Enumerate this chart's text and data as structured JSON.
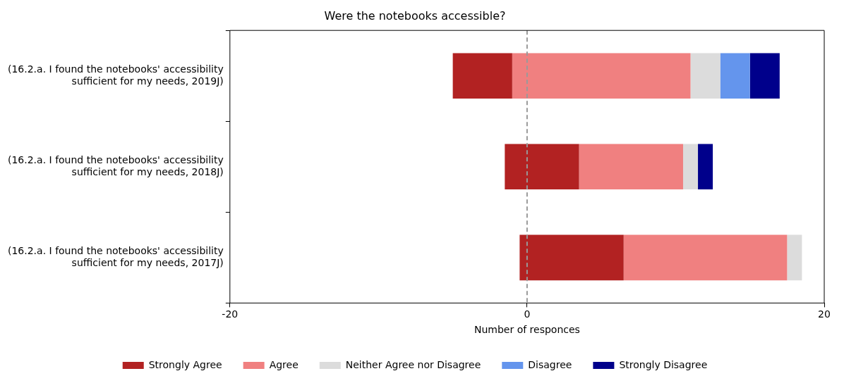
{
  "chart_data": {
    "type": "bar",
    "orientation": "horizontal",
    "title": "Were the notebooks accessible?",
    "xlabel": "Number of responces",
    "categories": [
      "(16.2.a. I found the notebooks' accessibility sufficient for my needs, 2019J)",
      "(16.2.a. I found the notebooks' accessibility sufficient for my needs, 2018J)",
      "(16.2.a. I found the notebooks' accessibility sufficient for my needs, 2017J)"
    ],
    "series": [
      {
        "name": "Strongly Agree",
        "color": "#b22222",
        "base": [
          -5,
          -1.5,
          -0.5
        ],
        "values": [
          4,
          5,
          7
        ]
      },
      {
        "name": "Agree",
        "color": "#f08080",
        "base": [
          -1,
          3.5,
          6.5
        ],
        "values": [
          12,
          7,
          11
        ]
      },
      {
        "name": "Neither Agree nor Disagree",
        "color": "#dcdcdc",
        "base": [
          11,
          10.5,
          17.5
        ],
        "values": [
          2,
          1,
          1
        ]
      },
      {
        "name": "Disagree",
        "color": "#6495ed",
        "base": [
          13,
          null,
          null
        ],
        "values": [
          2,
          null,
          null
        ]
      },
      {
        "name": "Strongly Disagree",
        "color": "#00008b",
        "base": [
          15,
          11.5,
          null
        ],
        "values": [
          2,
          1,
          null
        ]
      }
    ],
    "xlim": [
      -20,
      20
    ],
    "xticks": [
      -20,
      0,
      20
    ],
    "grid": false,
    "legend": "bottom",
    "ref_lines": [
      {
        "axis": "x",
        "value": 0,
        "color": "#999999",
        "line_style": "dashed"
      }
    ]
  }
}
